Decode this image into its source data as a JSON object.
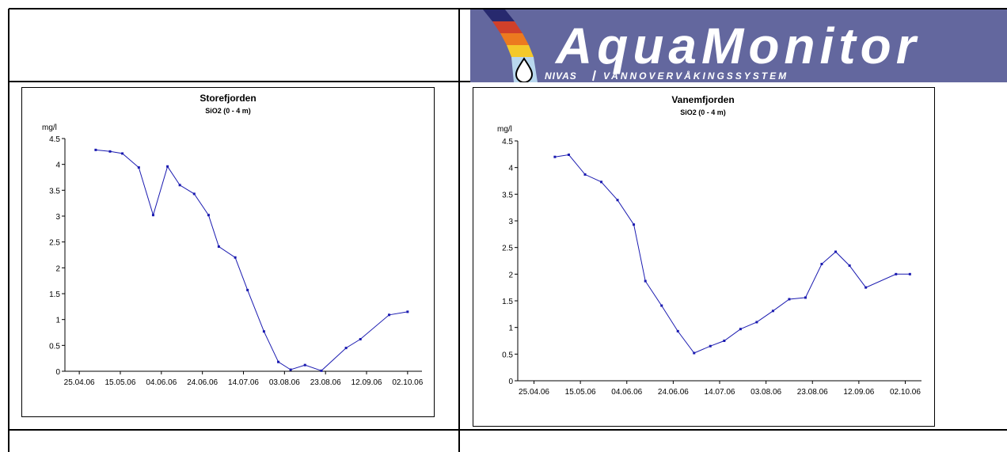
{
  "logo": {
    "brand": "AquaMonitor",
    "sub_left": "NIVAS",
    "sub_right": "VANNOVERVÅKINGSSYSTEM",
    "bg_color": "#63679e",
    "text_color": "#ffffff"
  },
  "colors": {
    "series": "#1a1ab0",
    "axis": "#000000"
  },
  "chart_data": [
    {
      "type": "line",
      "title": "Storefjorden",
      "subtitle": "SiO2 (0 - 4 m)",
      "ylabel": "mg/l",
      "x_axis": "date",
      "xlim": [
        "2006-04-18",
        "2006-10-09"
      ],
      "ylim": [
        0,
        4.5
      ],
      "yticks": [
        0,
        0.5,
        1,
        1.5,
        2,
        2.5,
        3,
        3.5,
        4,
        4.5
      ],
      "ytick_labels": [
        "0",
        "0.5",
        "1",
        "1.5",
        "2",
        "2.5",
        "3",
        "3.5",
        "4",
        "4.5"
      ],
      "xticks": [
        "2006-04-25",
        "2006-05-15",
        "2006-06-04",
        "2006-06-24",
        "2006-07-14",
        "2006-08-03",
        "2006-08-23",
        "2006-09-12",
        "2006-10-02"
      ],
      "xtick_labels": [
        "25.04.06",
        "15.05.06",
        "04.06.06",
        "24.06.06",
        "14.07.06",
        "03.08.06",
        "23.08.06",
        "12.09.06",
        "02.10.06"
      ],
      "grid": false,
      "series": [
        {
          "x": [
            "2006-05-03",
            "2006-05-10",
            "2006-05-16",
            "2006-05-24",
            "2006-05-31",
            "2006-06-07",
            "2006-06-13",
            "2006-06-20",
            "2006-06-27",
            "2006-07-02",
            "2006-07-10",
            "2006-07-16",
            "2006-07-24",
            "2006-07-31",
            "2006-08-06",
            "2006-08-13",
            "2006-08-21",
            "2006-09-02",
            "2006-09-09",
            "2006-09-23",
            "2006-10-02"
          ],
          "y": [
            4.28,
            4.25,
            4.21,
            3.94,
            3.02,
            3.96,
            3.6,
            3.43,
            3.02,
            2.41,
            2.2,
            1.57,
            0.77,
            0.18,
            0.03,
            0.12,
            0.01,
            0.45,
            0.62,
            1.09,
            1.15
          ]
        }
      ]
    },
    {
      "type": "line",
      "title": "Vanemfjorden",
      "subtitle": "SiO2 (0 - 4 m)",
      "ylabel": "mg/l",
      "x_axis": "date",
      "xlim": [
        "2006-04-18",
        "2006-10-09"
      ],
      "ylim": [
        0,
        4.5
      ],
      "yticks": [
        0,
        0.5,
        1,
        1.5,
        2,
        2.5,
        3,
        3.5,
        4,
        4.5
      ],
      "ytick_labels": [
        "0",
        "0.5",
        "1",
        "1.5",
        "2",
        "2.5",
        "3",
        "3.5",
        "4",
        "4.5"
      ],
      "xticks": [
        "2006-04-25",
        "2006-05-15",
        "2006-06-04",
        "2006-06-24",
        "2006-07-14",
        "2006-08-03",
        "2006-08-23",
        "2006-09-12",
        "2006-10-02"
      ],
      "xtick_labels": [
        "25.04.06",
        "15.05.06",
        "04.06.06",
        "24.06.06",
        "14.07.06",
        "03.08.06",
        "23.08.06",
        "12.09.06",
        "02.10.06"
      ],
      "grid": false,
      "series": [
        {
          "x": [
            "2006-05-04",
            "2006-05-10",
            "2006-05-17",
            "2006-05-24",
            "2006-05-31",
            "2006-06-07",
            "2006-06-12",
            "2006-06-19",
            "2006-06-26",
            "2006-07-03",
            "2006-07-10",
            "2006-07-16",
            "2006-07-23",
            "2006-07-30",
            "2006-08-06",
            "2006-08-13",
            "2006-08-20",
            "2006-08-27",
            "2006-09-02",
            "2006-09-08",
            "2006-09-15",
            "2006-09-28",
            "2006-10-04"
          ],
          "y": [
            4.2,
            4.24,
            3.87,
            3.73,
            3.39,
            2.93,
            1.87,
            1.41,
            0.93,
            0.52,
            0.65,
            0.75,
            0.97,
            1.1,
            1.31,
            1.53,
            1.56,
            2.19,
            2.42,
            2.16,
            1.75,
            2.0,
            2.0
          ]
        }
      ]
    }
  ]
}
